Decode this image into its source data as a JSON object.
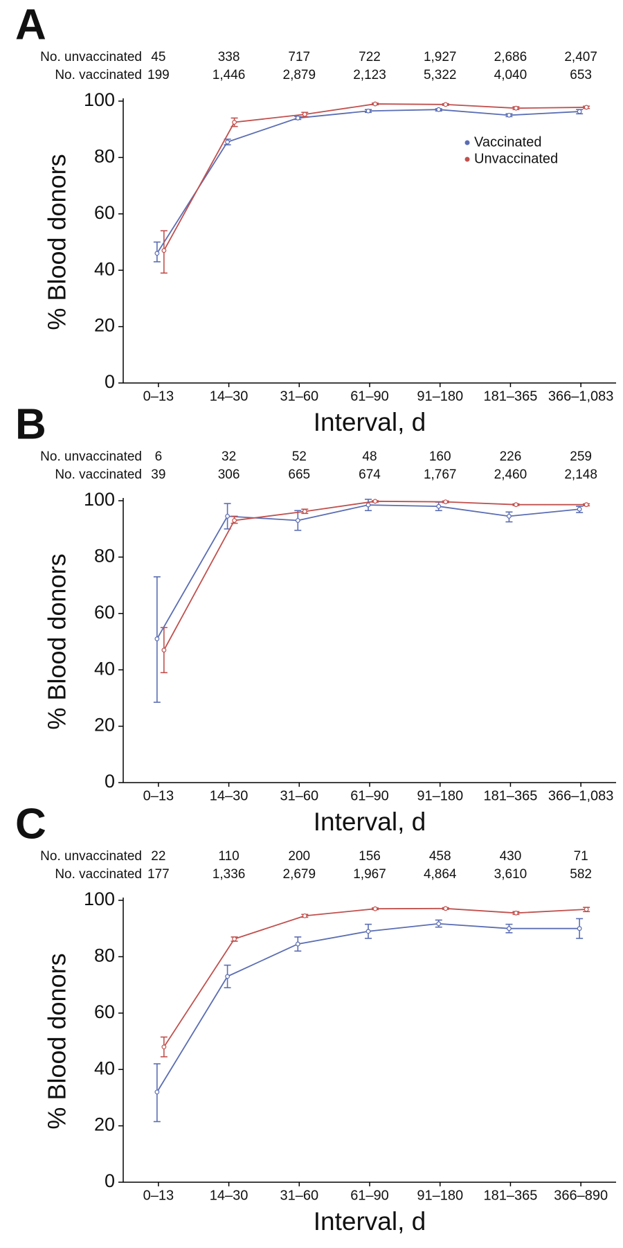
{
  "chart_data": [
    {
      "type": "line",
      "panel_label": "A",
      "x_label": "Interval, d",
      "y_label": "% Blood donors",
      "categories": [
        "0–13",
        "14–30",
        "31–60",
        "61–90",
        "91–180",
        "181–365",
        "366–1,083"
      ],
      "counts": [
        {
          "label": "No. unvaccinated",
          "values": [
            45,
            338,
            717,
            722,
            1927,
            2686,
            2407
          ],
          "value_labels": [
            "45",
            "338",
            "717",
            "722",
            "1,927",
            "2,686",
            "2,407"
          ]
        },
        {
          "label": "No. vaccinated",
          "values": [
            199,
            1446,
            2879,
            2123,
            5322,
            4040,
            653
          ],
          "value_labels": [
            "199",
            "1,446",
            "2,879",
            "2,123",
            "5,322",
            "4,040",
            "653"
          ]
        }
      ],
      "series": [
        {
          "name": "Vaccinated",
          "color": "#5a6db3",
          "values": [
            46,
            85.5,
            94,
            96.5,
            97,
            95,
            96.3
          ],
          "lower": [
            43,
            84.5,
            93.5,
            96,
            96.5,
            94.5,
            95.5
          ],
          "upper": [
            50,
            86.5,
            94.5,
            97,
            97.3,
            95.5,
            97
          ]
        },
        {
          "name": "Unvaccinated",
          "color": "#c0504d",
          "values": [
            47,
            92.5,
            95.3,
            99,
            98.8,
            97.5,
            97.8
          ],
          "lower": [
            39,
            91,
            94.5,
            98.7,
            98.5,
            97,
            97.4
          ],
          "upper": [
            54,
            94,
            96,
            99.3,
            99.1,
            98,
            98.2
          ]
        }
      ],
      "legend": "upper right",
      "ylim": [
        0,
        100
      ],
      "yticks": [
        0,
        20,
        40,
        60,
        80,
        100
      ]
    },
    {
      "type": "line",
      "panel_label": "B",
      "x_label": "Interval, d",
      "y_label": "% Blood donors",
      "categories": [
        "0–13",
        "14–30",
        "31–60",
        "61–90",
        "91–180",
        "181–365",
        "366–1,083"
      ],
      "counts": [
        {
          "label": "No. unvaccinated",
          "values": [
            6,
            32,
            52,
            48,
            160,
            226,
            259
          ],
          "value_labels": [
            "6",
            "32",
            "52",
            "48",
            "160",
            "226",
            "259"
          ]
        },
        {
          "label": "No. vaccinated",
          "values": [
            39,
            306,
            665,
            674,
            1767,
            2460,
            2148
          ],
          "value_labels": [
            "39",
            "306",
            "665",
            "674",
            "1,767",
            "2,460",
            "2,148"
          ]
        }
      ],
      "series": [
        {
          "name": "Vaccinated",
          "color": "#5a6db3",
          "values": [
            51,
            94.5,
            93,
            98.5,
            98,
            94.5,
            97
          ],
          "lower": [
            28.5,
            90,
            89.5,
            96.5,
            96.5,
            92.5,
            95.8
          ],
          "upper": [
            73,
            99,
            96.5,
            100.5,
            99.5,
            96,
            98
          ]
        },
        {
          "name": "Unvaccinated",
          "color": "#c0504d",
          "values": [
            47,
            93,
            96.2,
            99.8,
            99.6,
            98.6,
            98.6
          ],
          "lower": [
            39,
            92,
            95.5,
            99.5,
            99.3,
            98.3,
            98.2
          ],
          "upper": [
            55,
            94.5,
            97,
            100,
            99.9,
            98.9,
            98.9
          ]
        }
      ],
      "ylim": [
        0,
        100
      ],
      "yticks": [
        0,
        20,
        40,
        60,
        80,
        100
      ]
    },
    {
      "type": "line",
      "panel_label": "C",
      "x_label": "Interval, d",
      "y_label": "% Blood donors",
      "categories": [
        "0–13",
        "14–30",
        "31–60",
        "61–90",
        "91–180",
        "181–365",
        "366–890"
      ],
      "counts": [
        {
          "label": "No. unvaccinated",
          "values": [
            22,
            110,
            200,
            156,
            458,
            430,
            71
          ],
          "value_labels": [
            "22",
            "110",
            "200",
            "156",
            "458",
            "430",
            "71"
          ]
        },
        {
          "label": "No. vaccinated",
          "values": [
            177,
            1336,
            2679,
            1967,
            4864,
            3610,
            582
          ],
          "value_labels": [
            "177",
            "1,336",
            "2,679",
            "1,967",
            "4,864",
            "3,610",
            "582"
          ]
        }
      ],
      "series": [
        {
          "name": "Vaccinated",
          "color": "#5a6db3",
          "values": [
            32,
            73,
            84.5,
            89,
            91.7,
            90,
            90
          ],
          "lower": [
            21.5,
            69,
            82,
            86.5,
            90.5,
            88.5,
            86.5
          ],
          "upper": [
            42,
            77,
            87,
            91.5,
            93,
            91.5,
            93.5
          ]
        },
        {
          "name": "Unvaccinated",
          "color": "#c0504d",
          "values": [
            48,
            86.3,
            94.5,
            97,
            97.1,
            95.5,
            96.8
          ],
          "lower": [
            44.5,
            85.5,
            94,
            96.7,
            96.8,
            95,
            96
          ],
          "upper": [
            51.5,
            87,
            95,
            97.3,
            97.4,
            96,
            97.5
          ]
        }
      ],
      "ylim": [
        0,
        100
      ],
      "yticks": [
        0,
        20,
        40,
        60,
        80,
        100
      ]
    }
  ]
}
